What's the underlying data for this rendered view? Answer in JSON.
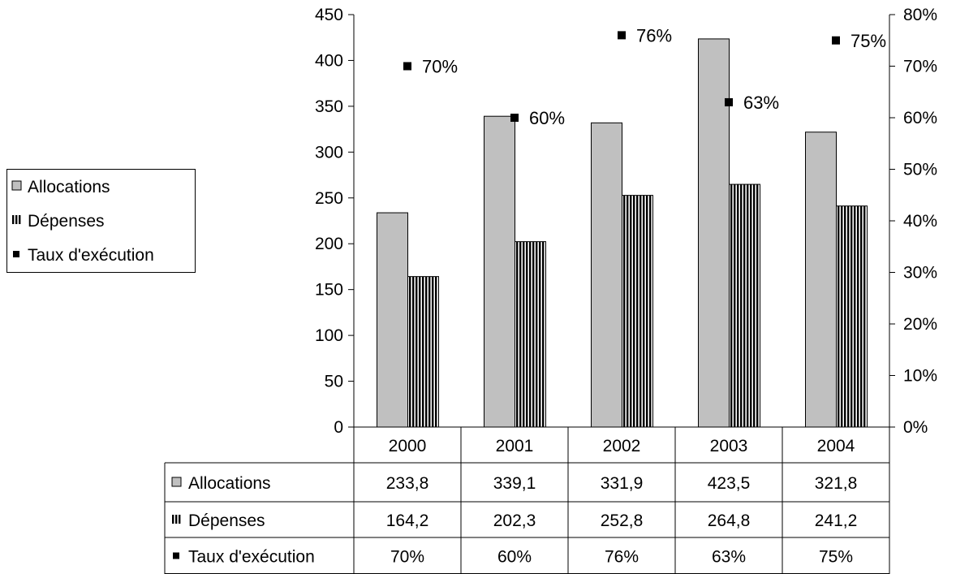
{
  "chart_data": {
    "type": "bar",
    "categories": [
      "2000",
      "2001",
      "2002",
      "2003",
      "2004"
    ],
    "series": [
      {
        "name": "Allocations",
        "kind": "bar",
        "axis": "left",
        "color": "#c0c0c0",
        "values": [
          233.8,
          339.1,
          331.9,
          423.5,
          321.8
        ],
        "labels": [
          "233,8",
          "339,1",
          "331,9",
          "423,5",
          "321,8"
        ]
      },
      {
        "name": "Dépenses",
        "kind": "bar",
        "axis": "left",
        "pattern": "vertical-stripes",
        "values": [
          164.2,
          202.3,
          252.8,
          264.8,
          241.2
        ],
        "labels": [
          "164,2",
          "202,3",
          "252,8",
          "264,8",
          "241,2"
        ]
      },
      {
        "name": "Taux d'exécution",
        "kind": "point",
        "axis": "right",
        "color": "#000000",
        "values": [
          70,
          60,
          76,
          63,
          75
        ],
        "labels": [
          "70%",
          "60%",
          "76%",
          "63%",
          "75%"
        ]
      }
    ],
    "y_left": {
      "ylim": [
        0,
        450
      ],
      "ticks": [
        "0",
        "50",
        "100",
        "150",
        "200",
        "250",
        "300",
        "350",
        "400",
        "450"
      ]
    },
    "y_right": {
      "ylim": [
        0,
        80
      ],
      "ticks": [
        "0%",
        "10%",
        "20%",
        "30%",
        "40%",
        "50%",
        "60%",
        "70%",
        "80%"
      ]
    },
    "grid": false,
    "legend": "left",
    "data_table": true
  }
}
